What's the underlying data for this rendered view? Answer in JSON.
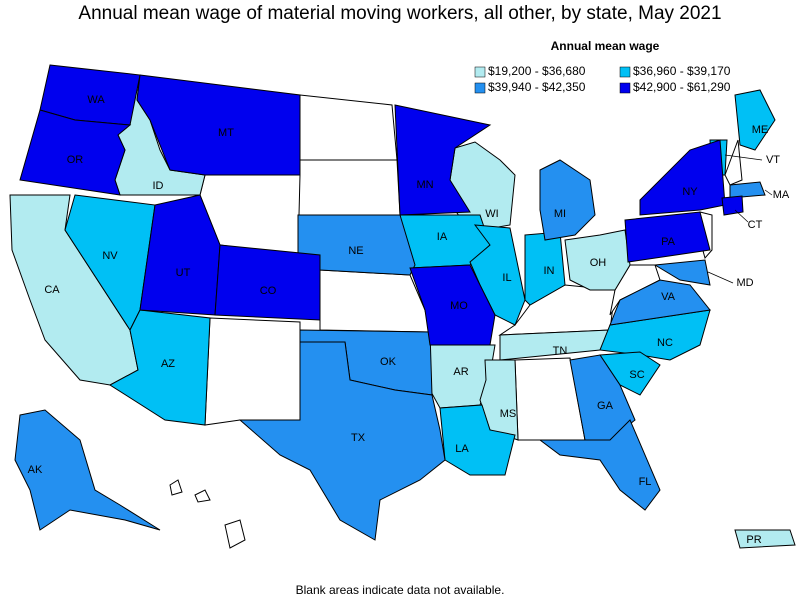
{
  "title": "Annual mean wage of material moving workers, all other, by state, May 2021",
  "legend": {
    "title": "Annual mean wage",
    "items": [
      {
        "label": "$19,200 - $36,680",
        "color": "#b2ebf0",
        "states": [
          "ID",
          "CA",
          "WI",
          "OH",
          "AR",
          "MS",
          "TN",
          "PR"
        ]
      },
      {
        "label": "$36,960 - $39,170",
        "color": "#00c0f5",
        "states": [
          "NV",
          "AZ",
          "IA",
          "IL",
          "IN",
          "NC",
          "SC",
          "LA",
          "ME",
          "VT"
        ]
      },
      {
        "label": "$39,940 - $42,350",
        "color": "#2490f0",
        "states": [
          "NE",
          "OK",
          "TX",
          "MI",
          "GA",
          "FL",
          "AK",
          "VA",
          "MA",
          "MD"
        ]
      },
      {
        "label": "$42,900 - $61,290",
        "color": "#0000ee",
        "states": [
          "WA",
          "OR",
          "MT",
          "UT",
          "CO",
          "MN",
          "MO",
          "NY",
          "PA",
          "CT"
        ]
      }
    ]
  },
  "footnote": "Blank areas indicate data not available."
}
